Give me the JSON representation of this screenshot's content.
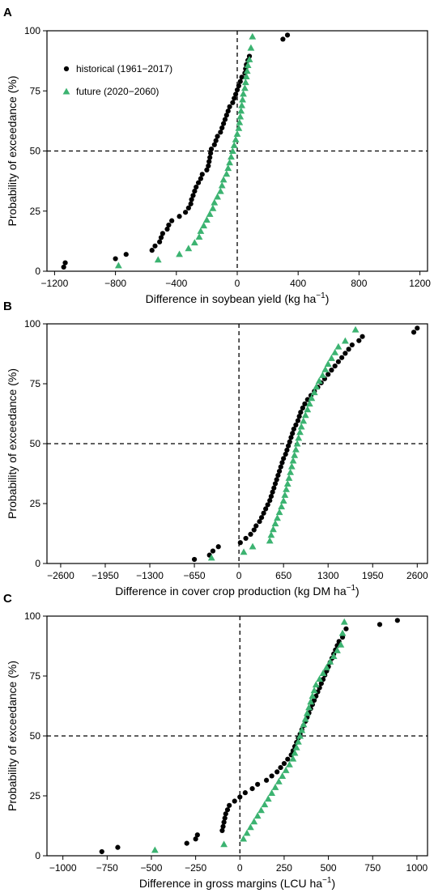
{
  "chart_data": [
    {
      "type": "scatter",
      "panel": "A",
      "xlabel": "Difference in soybean yield (kg ha",
      "xlabel_sup": "−1",
      "xlabel_end": ")",
      "ylabel": "Probability of exceedance (%)",
      "xlim": [
        -1250,
        1250
      ],
      "ylim": [
        0,
        100
      ],
      "xticks": [
        -1200,
        -800,
        -400,
        0,
        400,
        800,
        1200
      ],
      "xtick_labels": [
        "−1200",
        "−800",
        "−400",
        "0",
        "400",
        "800",
        "1200"
      ],
      "yticks": [
        0,
        25,
        50,
        75,
        100
      ],
      "ytick_labels": [
        "0",
        "25",
        "50",
        "75",
        "100"
      ],
      "ref_lines": {
        "x": 0,
        "y": 50
      },
      "legend": {
        "placement": "top-left",
        "entries": [
          "historical (1961−2017)",
          "future (2020−2060)"
        ]
      },
      "series": [
        {
          "name": "historical (1961−2017)",
          "marker": "circle",
          "color": "#000000",
          "x": [
            -1140,
            -1130,
            -800,
            -730,
            -560,
            -540,
            -510,
            -500,
            -490,
            -460,
            -450,
            -430,
            -380,
            -340,
            -320,
            -305,
            -300,
            -290,
            -280,
            -270,
            -255,
            -240,
            -230,
            -200,
            -190,
            -185,
            -180,
            -175,
            -170,
            -150,
            -140,
            -130,
            -110,
            -100,
            -90,
            -80,
            -70,
            -60,
            -50,
            -30,
            -20,
            -10,
            0,
            10,
            20,
            30,
            50,
            55,
            60,
            70,
            80,
            300,
            330
          ],
          "y": [
            1.7,
            3.5,
            5.2,
            7.0,
            8.7,
            10.5,
            12.2,
            14.0,
            15.7,
            17.5,
            19.2,
            21.0,
            22.8,
            24.5,
            26.3,
            28.0,
            29.8,
            31.5,
            33.3,
            35.0,
            36.8,
            38.5,
            40.3,
            42.1,
            43.8,
            45.6,
            47.3,
            49.1,
            50.8,
            52.6,
            54.3,
            56.1,
            57.8,
            59.6,
            61.4,
            63.1,
            64.9,
            66.6,
            68.4,
            70.1,
            71.9,
            73.6,
            75.4,
            77.1,
            78.9,
            80.7,
            82.4,
            84.2,
            85.9,
            87.7,
            89.4,
            96.5,
            98.2
          ]
        },
        {
          "name": "future (2020−2060)",
          "marker": "triangle",
          "color": "#3cb371",
          "x": [
            -780,
            -520,
            -380,
            -320,
            -280,
            -250,
            -240,
            -220,
            -200,
            -180,
            -160,
            -150,
            -130,
            -110,
            -100,
            -90,
            -70,
            -60,
            -50,
            -40,
            -30,
            -20,
            -10,
            0,
            10,
            15,
            20,
            25,
            30,
            35,
            40,
            50,
            55,
            60,
            65,
            70,
            80,
            90,
            100
          ],
          "y": [
            2.4,
            4.8,
            7.1,
            9.5,
            11.9,
            14.3,
            16.7,
            19.0,
            21.4,
            23.8,
            26.2,
            28.6,
            31.0,
            33.3,
            35.7,
            38.1,
            40.5,
            42.9,
            45.2,
            47.6,
            50.0,
            52.4,
            54.8,
            57.1,
            59.5,
            61.9,
            64.3,
            66.7,
            69.0,
            71.4,
            73.8,
            76.2,
            78.6,
            81.0,
            83.3,
            85.7,
            88.1,
            92.9,
            97.6
          ]
        }
      ]
    },
    {
      "type": "scatter",
      "panel": "B",
      "xlabel": "Difference in cover crop production (kg DM ha",
      "xlabel_sup": "−1",
      "xlabel_end": ")",
      "ylabel": "Probability of exceedance (%)",
      "xlim": [
        -2800,
        2750
      ],
      "ylim": [
        0,
        100
      ],
      "xticks": [
        -2600,
        -1950,
        -1300,
        -650,
        0,
        650,
        1300,
        1950,
        2600
      ],
      "xtick_labels": [
        "−2600",
        "−1950",
        "−1300",
        "−650",
        "0",
        "650",
        "1300",
        "1950",
        "2600"
      ],
      "yticks": [
        0,
        25,
        50,
        75,
        100
      ],
      "ytick_labels": [
        "0",
        "25",
        "50",
        "75",
        "100"
      ],
      "ref_lines": {
        "x": 0,
        "y": 50
      },
      "series": [
        {
          "name": "historical (1961−2017)",
          "marker": "circle",
          "color": "#000000",
          "x": [
            -650,
            -430,
            -380,
            -300,
            20,
            100,
            170,
            220,
            250,
            300,
            330,
            360,
            390,
            420,
            450,
            470,
            490,
            510,
            530,
            550,
            570,
            590,
            610,
            630,
            650,
            680,
            700,
            720,
            740,
            760,
            780,
            800,
            830,
            860,
            880,
            900,
            930,
            960,
            1000,
            1050,
            1100,
            1150,
            1200,
            1250,
            1300,
            1350,
            1400,
            1450,
            1500,
            1550,
            1600,
            1650,
            1750,
            1800,
            2550,
            2600
          ],
          "y": [
            1.7,
            3.5,
            5.2,
            7.0,
            8.7,
            10.5,
            12.2,
            14.0,
            15.7,
            17.5,
            19.2,
            21.0,
            22.8,
            24.5,
            26.3,
            28.0,
            29.8,
            31.5,
            33.3,
            35.0,
            36.8,
            38.5,
            40.3,
            42.1,
            43.8,
            45.6,
            47.3,
            49.1,
            50.8,
            52.6,
            54.3,
            56.1,
            57.8,
            59.6,
            61.4,
            63.1,
            64.9,
            66.6,
            68.4,
            70.1,
            71.9,
            73.6,
            75.4,
            77.1,
            78.9,
            80.7,
            82.4,
            84.2,
            85.9,
            87.7,
            89.4,
            91.2,
            93.0,
            94.7,
            96.5,
            98.2
          ]
        },
        {
          "name": "future (2020−2060)",
          "marker": "triangle",
          "color": "#3cb371",
          "x": [
            -400,
            70,
            200,
            450,
            470,
            500,
            530,
            560,
            590,
            620,
            650,
            670,
            690,
            710,
            730,
            750,
            770,
            790,
            810,
            830,
            850,
            870,
            890,
            910,
            940,
            970,
            1000,
            1030,
            1060,
            1100,
            1130,
            1170,
            1220,
            1260,
            1300,
            1350,
            1400,
            1450,
            1550,
            1700
          ],
          "y": [
            2.4,
            4.8,
            7.1,
            9.5,
            11.9,
            14.3,
            16.7,
            19.0,
            21.4,
            23.8,
            26.2,
            28.6,
            31.0,
            33.3,
            35.7,
            38.1,
            40.5,
            42.9,
            45.2,
            47.6,
            50.0,
            52.4,
            54.8,
            57.1,
            59.5,
            61.9,
            64.3,
            66.7,
            69.0,
            71.4,
            73.8,
            76.2,
            78.6,
            81.0,
            83.3,
            85.7,
            88.1,
            90.5,
            92.9,
            97.6
          ]
        }
      ]
    },
    {
      "type": "scatter",
      "panel": "C",
      "xlabel": "Difference in gross margins (LCU ha",
      "xlabel_sup": "−1",
      "xlabel_end": ")",
      "ylabel": "Probability of exceedance (%)",
      "xlim": [
        -1090,
        1060
      ],
      "ylim": [
        0,
        100
      ],
      "xticks": [
        -1000,
        -750,
        -500,
        -250,
        0,
        250,
        500,
        750,
        1000
      ],
      "xtick_labels": [
        "−1000",
        "−750",
        "−500",
        "−250",
        "0",
        "250",
        "500",
        "750",
        "1000"
      ],
      "yticks": [
        0,
        25,
        50,
        75,
        100
      ],
      "ytick_labels": [
        "0",
        "25",
        "50",
        "75",
        "100"
      ],
      "ref_lines": {
        "x": 0,
        "y": 50
      },
      "series": [
        {
          "name": "historical (1961−2017)",
          "marker": "circle",
          "color": "#000000",
          "x": [
            -780,
            -690,
            -300,
            -250,
            -240,
            -100,
            -95,
            -90,
            -85,
            -80,
            -70,
            -60,
            -30,
            0,
            30,
            70,
            100,
            150,
            180,
            210,
            230,
            250,
            270,
            290,
            300,
            310,
            320,
            330,
            340,
            350,
            360,
            370,
            380,
            390,
            400,
            410,
            420,
            430,
            440,
            450,
            460,
            470,
            480,
            490,
            500,
            510,
            520,
            530,
            540,
            550,
            560,
            580,
            600,
            790,
            890
          ],
          "y": [
            1.7,
            3.5,
            5.2,
            7.0,
            8.7,
            10.5,
            12.2,
            14.0,
            15.7,
            17.5,
            19.2,
            21.0,
            22.8,
            24.5,
            26.3,
            28.0,
            29.8,
            31.5,
            33.3,
            35.0,
            36.8,
            38.5,
            40.3,
            42.1,
            43.8,
            45.6,
            47.3,
            49.1,
            50.8,
            52.6,
            54.3,
            56.1,
            57.8,
            59.6,
            61.4,
            63.1,
            64.9,
            66.6,
            68.4,
            70.1,
            71.9,
            73.6,
            75.4,
            77.1,
            78.9,
            80.7,
            82.4,
            84.2,
            85.9,
            87.7,
            89.4,
            91.2,
            94.7,
            96.5,
            98.2
          ]
        },
        {
          "name": "future (2020−2060)",
          "marker": "triangle",
          "color": "#3cb371",
          "x": [
            -480,
            -90,
            20,
            40,
            60,
            80,
            100,
            120,
            140,
            160,
            180,
            200,
            220,
            240,
            260,
            280,
            300,
            310,
            320,
            330,
            340,
            350,
            360,
            370,
            380,
            390,
            400,
            410,
            420,
            430,
            450,
            470,
            490,
            510,
            530,
            550,
            570,
            580,
            590
          ],
          "y": [
            2.4,
            4.8,
            7.1,
            9.5,
            11.9,
            14.3,
            16.7,
            19.0,
            21.4,
            23.8,
            26.2,
            28.6,
            31.0,
            33.3,
            35.7,
            38.1,
            40.5,
            42.9,
            45.2,
            47.6,
            50.0,
            52.4,
            54.8,
            57.1,
            59.5,
            61.9,
            64.3,
            66.7,
            69.0,
            71.4,
            73.8,
            76.2,
            78.6,
            81.0,
            83.3,
            85.7,
            88.1,
            92.9,
            97.6
          ]
        }
      ]
    }
  ]
}
